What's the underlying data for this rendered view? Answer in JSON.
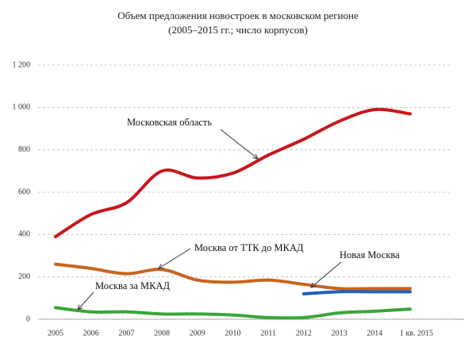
{
  "chart_data": {
    "type": "line",
    "title": "Объем предложения новостроек в московском регионе",
    "subtitle": "(2005–2015 гг.; число корпусов)",
    "categories": [
      "2005",
      "2006",
      "2007",
      "2008",
      "2009",
      "2010",
      "2011",
      "2012",
      "2013",
      "2014",
      "1 кв. 2015"
    ],
    "series": [
      {
        "name": "Московская область",
        "color": "#c8161d",
        "values": [
          390,
          495,
          550,
          700,
          667,
          690,
          775,
          850,
          935,
          990,
          970
        ]
      },
      {
        "name": "Москва от ТТК до МКАД",
        "color": "#c8651f",
        "values": [
          260,
          240,
          215,
          235,
          185,
          175,
          185,
          165,
          145,
          145,
          145
        ]
      },
      {
        "name": "Новая Москва",
        "color": "#1f5fbf",
        "values": [
          null,
          null,
          null,
          null,
          null,
          null,
          null,
          120,
          130,
          130,
          130
        ]
      },
      {
        "name": "Москва за МКАД",
        "color": "#3aa53a",
        "values": [
          55,
          35,
          35,
          25,
          25,
          20,
          8,
          8,
          30,
          38,
          48
        ]
      }
    ],
    "ylim": [
      0,
      1200
    ],
    "yticks": [
      0,
      200,
      400,
      600,
      800,
      {
        "value": 1000,
        "label": "1 000"
      },
      {
        "value": 1200,
        "label": "1 200"
      }
    ],
    "grid": true
  }
}
